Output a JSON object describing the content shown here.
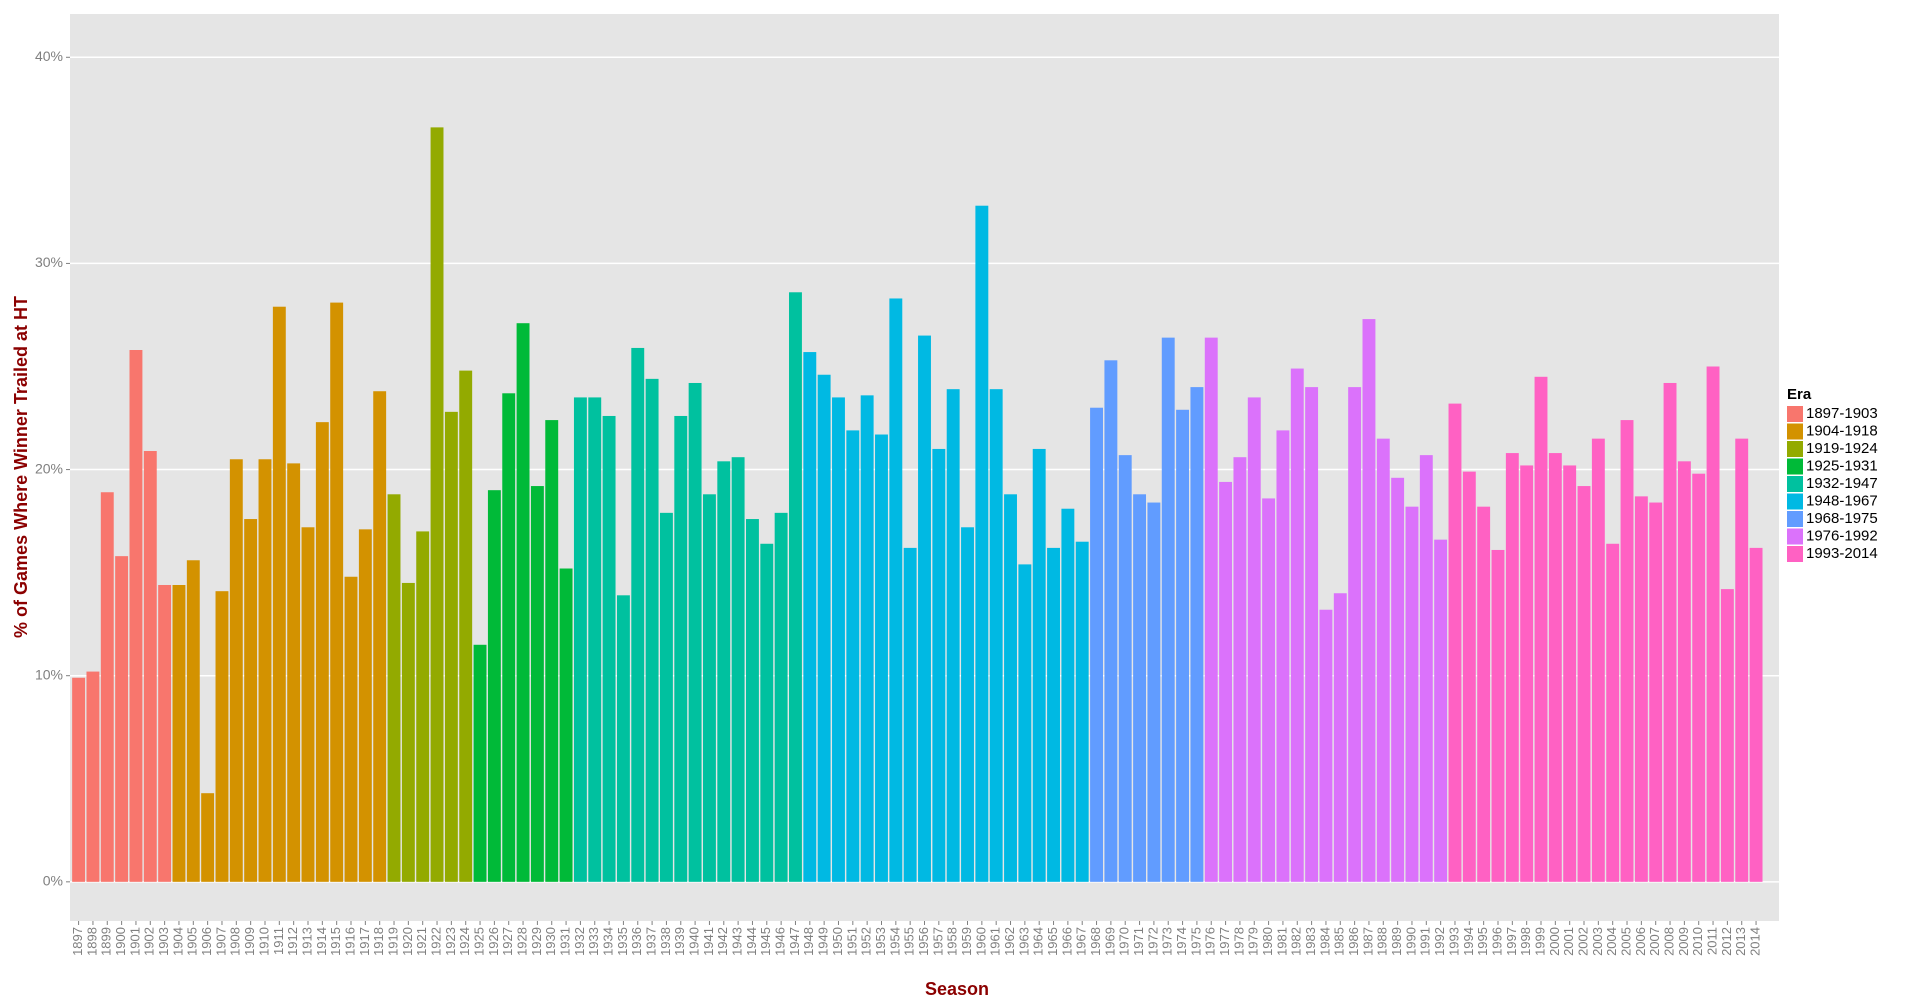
{
  "chart_data": {
    "type": "bar",
    "x_label": "Season",
    "y_label": "% of Games Where Winner Trailed at HT",
    "legend_title": "Era",
    "legend_position": "right",
    "grid": true,
    "ylim": [
      -1.9,
      42.1
    ],
    "yticks": [
      {
        "value": 0,
        "label": "0%"
      },
      {
        "value": 10,
        "label": "10%"
      },
      {
        "value": 20,
        "label": "20%"
      },
      {
        "value": 30,
        "label": "30%"
      },
      {
        "value": 40,
        "label": "40%"
      }
    ],
    "series": [
      {
        "name": "1897-1903",
        "color": "#F8766D",
        "categories": [
          "1897",
          "1898",
          "1899",
          "1900",
          "1901",
          "1902",
          "1903"
        ],
        "values": [
          9.9,
          10.2,
          18.9,
          15.8,
          25.8,
          20.9,
          14.4
        ]
      },
      {
        "name": "1904-1918",
        "color": "#D39200",
        "categories": [
          "1904",
          "1905",
          "1906",
          "1907",
          "1908",
          "1909",
          "1910",
          "1911",
          "1912",
          "1913",
          "1914",
          "1915",
          "1916",
          "1917",
          "1918"
        ],
        "values": [
          14.4,
          15.6,
          4.3,
          14.1,
          20.5,
          17.6,
          20.5,
          27.9,
          20.3,
          17.2,
          22.3,
          28.1,
          14.8,
          17.1,
          23.8
        ]
      },
      {
        "name": "1919-1924",
        "color": "#93AA00",
        "categories": [
          "1919",
          "1920",
          "1921",
          "1922",
          "1923",
          "1924"
        ],
        "values": [
          18.8,
          14.5,
          17.0,
          36.6,
          22.8,
          24.8
        ]
      },
      {
        "name": "1925-1931",
        "color": "#00BA38",
        "categories": [
          "1925",
          "1926",
          "1927",
          "1928",
          "1929",
          "1930",
          "1931"
        ],
        "values": [
          11.5,
          19.0,
          23.7,
          27.1,
          19.2,
          22.4,
          15.2
        ]
      },
      {
        "name": "1932-1947",
        "color": "#00C19F",
        "categories": [
          "1932",
          "1933",
          "1934",
          "1935",
          "1936",
          "1937",
          "1938",
          "1939",
          "1940",
          "1941",
          "1942",
          "1943",
          "1944",
          "1945",
          "1946",
          "1947"
        ],
        "values": [
          23.5,
          23.5,
          22.6,
          13.9,
          25.9,
          24.4,
          17.9,
          22.6,
          24.2,
          18.8,
          20.4,
          20.6,
          17.6,
          16.4,
          17.9,
          28.6
        ]
      },
      {
        "name": "1948-1967",
        "color": "#00B9E3",
        "categories": [
          "1948",
          "1949",
          "1950",
          "1951",
          "1952",
          "1953",
          "1954",
          "1955",
          "1956",
          "1957",
          "1958",
          "1959",
          "1960",
          "1961",
          "1962",
          "1963",
          "1964",
          "1965",
          "1966",
          "1967"
        ],
        "values": [
          25.7,
          24.6,
          23.5,
          21.9,
          23.6,
          21.7,
          28.3,
          16.2,
          26.5,
          21.0,
          23.9,
          17.2,
          32.8,
          23.9,
          18.8,
          15.4,
          21.0,
          16.2,
          18.1,
          16.5
        ]
      },
      {
        "name": "1968-1975",
        "color": "#619CFF",
        "categories": [
          "1968",
          "1969",
          "1970",
          "1971",
          "1972",
          "1973",
          "1974",
          "1975"
        ],
        "values": [
          23.0,
          25.3,
          20.7,
          18.8,
          18.4,
          26.4,
          22.9,
          24.0
        ]
      },
      {
        "name": "1976-1992",
        "color": "#DB72FB",
        "categories": [
          "1976",
          "1977",
          "1978",
          "1979",
          "1980",
          "1981",
          "1982",
          "1983",
          "1984",
          "1985",
          "1986",
          "1987",
          "1988",
          "1989",
          "1990",
          "1991",
          "1992"
        ],
        "values": [
          26.4,
          19.4,
          20.6,
          23.5,
          18.6,
          21.9,
          24.9,
          24.0,
          13.2,
          14.0,
          24.0,
          27.3,
          21.5,
          19.6,
          18.2,
          20.7,
          16.6
        ]
      },
      {
        "name": "1993-2014",
        "color": "#FF61C3",
        "categories": [
          "1993",
          "1994",
          "1995",
          "1996",
          "1997",
          "1998",
          "1999",
          "2000",
          "2001",
          "2002",
          "2003",
          "2004",
          "2005",
          "2006",
          "2007",
          "2008",
          "2009",
          "2010",
          "2011",
          "2012",
          "2013",
          "2014"
        ],
        "values": [
          23.2,
          19.9,
          18.2,
          16.1,
          20.8,
          20.2,
          24.5,
          20.8,
          20.2,
          19.2,
          21.5,
          16.4,
          22.4,
          18.7,
          18.4,
          24.2,
          20.4,
          19.8,
          25.0,
          14.2,
          21.5,
          16.2
        ]
      }
    ]
  }
}
